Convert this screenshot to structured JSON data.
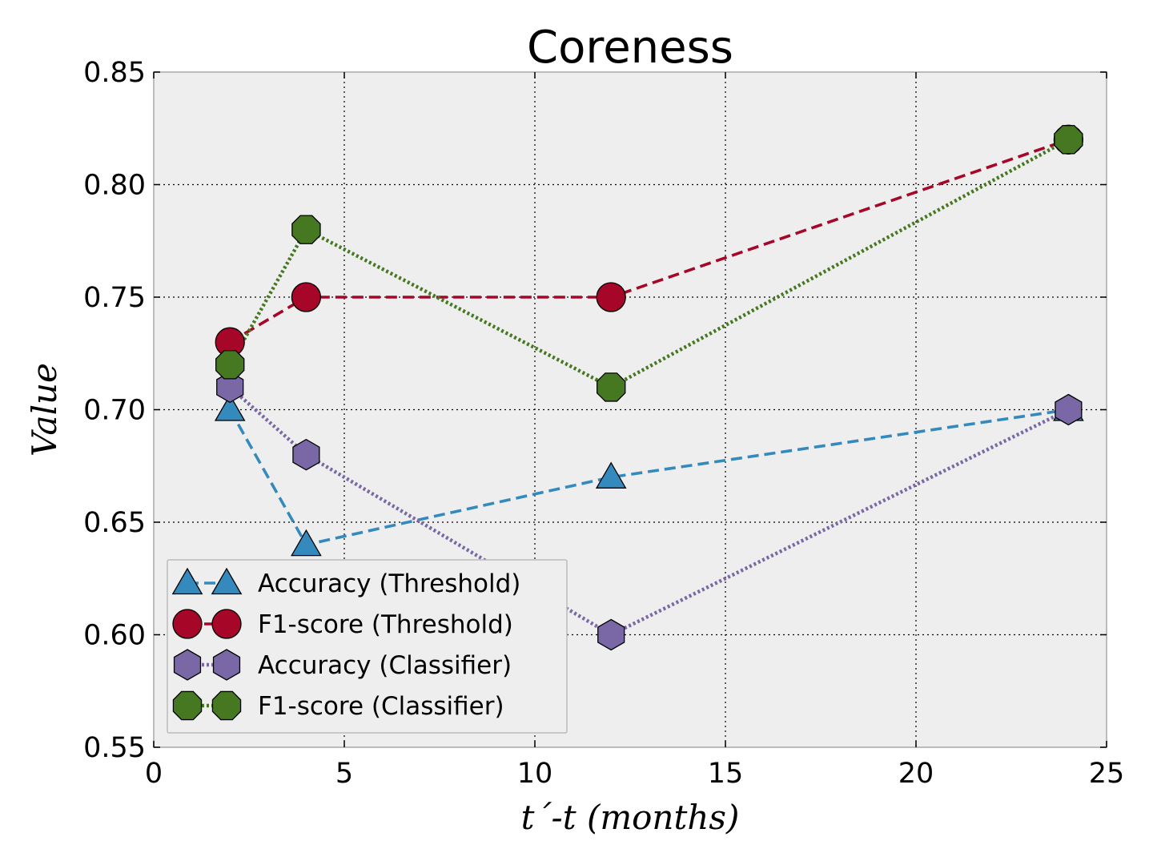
{
  "chart_data": {
    "type": "line",
    "title": "Coreness",
    "xlabel": "t´-t (months)",
    "ylabel": "Value",
    "xlim": [
      0,
      25
    ],
    "ylim": [
      0.55,
      0.85
    ],
    "xticks": [
      0,
      5,
      10,
      15,
      20,
      25
    ],
    "xtick_labels": [
      "0",
      "5",
      "10",
      "15",
      "20",
      "25"
    ],
    "yticks": [
      0.55,
      0.6,
      0.65,
      0.7,
      0.75,
      0.8,
      0.85
    ],
    "ytick_labels": [
      "0.55",
      "0.60",
      "0.65",
      "0.70",
      "0.75",
      "0.80",
      "0.85"
    ],
    "grid": true,
    "legend_position": "lower-left",
    "x": [
      2,
      4,
      12,
      24
    ],
    "series": [
      {
        "name": "Accuracy (Threshold)",
        "values": [
          0.7,
          0.64,
          0.67,
          0.7
        ],
        "color": "#348ABD",
        "marker": "triangle",
        "linestyle": "dashed"
      },
      {
        "name": "F1-score (Threshold)",
        "values": [
          0.73,
          0.75,
          0.75,
          0.82
        ],
        "color": "#A60628",
        "marker": "circle",
        "linestyle": "dashed"
      },
      {
        "name": "Accuracy (Classifier)",
        "values": [
          0.71,
          0.68,
          0.6,
          0.7
        ],
        "color": "#7A68A6",
        "marker": "hexagon",
        "linestyle": "dotted"
      },
      {
        "name": "F1-score (Classifier)",
        "values": [
          0.72,
          0.78,
          0.71,
          0.82
        ],
        "color": "#467821",
        "marker": "octagon",
        "linestyle": "dotted"
      }
    ]
  }
}
